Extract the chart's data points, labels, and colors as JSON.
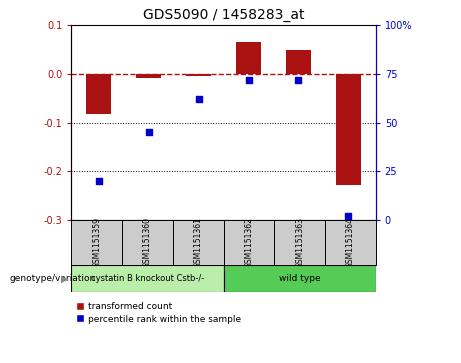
{
  "title": "GDS5090 / 1458283_at",
  "samples": [
    "GSM1151359",
    "GSM1151360",
    "GSM1151361",
    "GSM1151362",
    "GSM1151363",
    "GSM1151364"
  ],
  "red_values": [
    -0.082,
    -0.008,
    -0.005,
    0.065,
    0.05,
    -0.228
  ],
  "blue_values": [
    20,
    45,
    62,
    72,
    72,
    2
  ],
  "ylim_left": [
    -0.3,
    0.1
  ],
  "ylim_right": [
    0,
    100
  ],
  "yticks_left": [
    -0.3,
    -0.2,
    -0.1,
    0.0,
    0.1
  ],
  "yticks_right": [
    0,
    25,
    50,
    75,
    100
  ],
  "ytick_labels_right": [
    "0",
    "25",
    "50",
    "75",
    "100%"
  ],
  "group1_label": "cystatin B knockout Cstb-/-",
  "group2_label": "wild type",
  "group1_indices": [
    0,
    1,
    2
  ],
  "group2_indices": [
    3,
    4,
    5
  ],
  "group1_color": "#bbeeaa",
  "group2_color": "#55cc55",
  "sample_box_color": "#cccccc",
  "group_row_label": "genotype/variation",
  "legend_red_label": "transformed count",
  "legend_blue_label": "percentile rank within the sample",
  "bar_color": "#aa1111",
  "dot_color": "#0000cc",
  "bar_width": 0.5,
  "dotted_lines": [
    -0.1,
    -0.2
  ],
  "background_color": "#ffffff"
}
